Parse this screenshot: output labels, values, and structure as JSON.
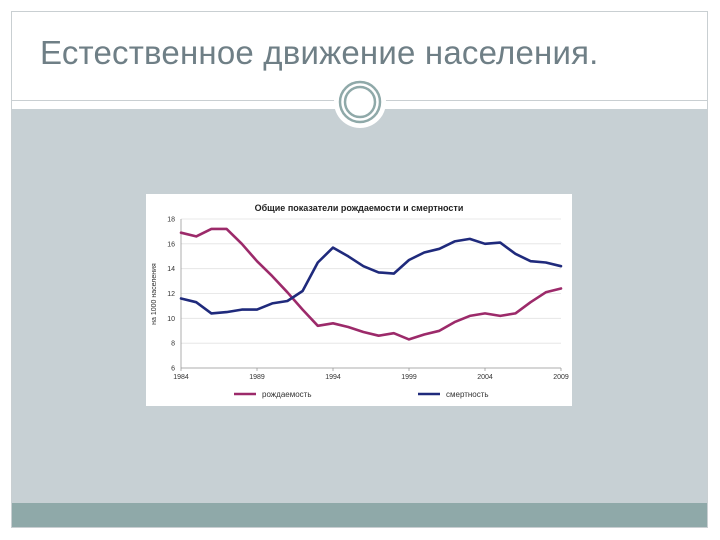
{
  "slide": {
    "title": "Естественное движение населения."
  },
  "theme": {
    "title_color": "#6f7f86",
    "panel_color": "#c7d0d4",
    "footer_color": "#8fa9a9",
    "ornament_icon": "double-ring-icon"
  },
  "chart_data": {
    "type": "line",
    "title": "Общие показатели рождаемости и смертности",
    "xlabel": "",
    "ylabel": "на 1000 населения",
    "xlim": [
      1984,
      2009
    ],
    "ylim": [
      6,
      18
    ],
    "yticks": [
      6,
      8,
      10,
      12,
      14,
      16,
      18
    ],
    "xtick_labels": [
      "1984",
      "1989",
      "1994",
      "1999",
      "2004",
      "2009"
    ],
    "xticks": [
      1984,
      1989,
      1994,
      1999,
      2004,
      2009
    ],
    "grid": true,
    "legend_position": "bottom",
    "x": [
      1984,
      1985,
      1986,
      1987,
      1988,
      1989,
      1990,
      1991,
      1992,
      1993,
      1994,
      1995,
      1996,
      1997,
      1998,
      1999,
      2000,
      2001,
      2002,
      2003,
      2004,
      2005,
      2006,
      2007,
      2008,
      2009
    ],
    "series": [
      {
        "name": "рождаемость",
        "color": "#9c2a6a",
        "values": [
          16.9,
          16.6,
          17.2,
          17.2,
          16.0,
          14.6,
          13.4,
          12.1,
          10.7,
          9.4,
          9.6,
          9.3,
          8.9,
          8.6,
          8.8,
          8.3,
          8.7,
          9.0,
          9.7,
          10.2,
          10.4,
          10.2,
          10.4,
          11.3,
          12.1,
          12.4
        ]
      },
      {
        "name": "смертность",
        "color": "#1f2a7c",
        "values": [
          11.6,
          11.3,
          10.4,
          10.5,
          10.7,
          10.7,
          11.2,
          11.4,
          12.2,
          14.5,
          15.7,
          15.0,
          14.2,
          13.7,
          13.6,
          14.7,
          15.3,
          15.6,
          16.2,
          16.4,
          16.0,
          16.1,
          15.2,
          14.6,
          14.5,
          14.2
        ]
      }
    ]
  }
}
